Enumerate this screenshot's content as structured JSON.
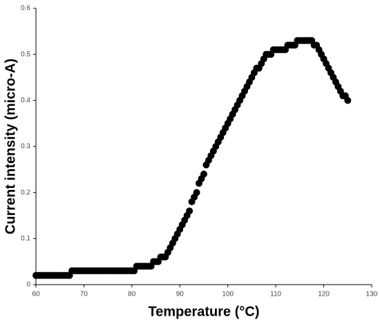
{
  "chart_data": {
    "type": "scatter",
    "x_label": "Temperature (°C)",
    "y_label": "Current intensity (micro-A)",
    "xlim": [
      60,
      130
    ],
    "xticks": [
      60,
      70,
      80,
      90,
      100,
      110,
      120,
      130
    ],
    "ylim": [
      0,
      0.6
    ],
    "yticks": [
      0,
      0.1,
      0.2,
      0.3,
      0.4,
      0.5,
      0.6
    ],
    "color": "#000000",
    "x": [
      60,
      60.5,
      61,
      61.5,
      62,
      62.5,
      63,
      63.5,
      64,
      64.5,
      65,
      65.5,
      66,
      66.5,
      67,
      67.5,
      68,
      68.5,
      69,
      69.5,
      70,
      70.5,
      71,
      71.5,
      72,
      72.5,
      73,
      73.5,
      74,
      74.5,
      75,
      75.5,
      76,
      76.5,
      77,
      77.5,
      78,
      78.5,
      79,
      79.5,
      80,
      80.5,
      81,
      81.5,
      82,
      82.5,
      83,
      83.5,
      84,
      84.5,
      85,
      85.5,
      86,
      86.5,
      87,
      87.5,
      88,
      88.5,
      89,
      89.5,
      90,
      90.5,
      91,
      91.5,
      92,
      92.5,
      93,
      93.5,
      94,
      94.5,
      95,
      95.5,
      96,
      96.5,
      97,
      97.5,
      98,
      98.5,
      99,
      99.5,
      100,
      100.5,
      101,
      101.5,
      102,
      102.5,
      103,
      103.5,
      104,
      104.5,
      105,
      105.5,
      106,
      106.5,
      107,
      107.5,
      108,
      108.5,
      109,
      109.5,
      110,
      110.5,
      111,
      111.5,
      112,
      112.5,
      113,
      113.5,
      114,
      114.5,
      115,
      115.5,
      116,
      116.5,
      117,
      117.5,
      118,
      118.5,
      119,
      119.5,
      120,
      120.5,
      121,
      121.5,
      122,
      122.5,
      123,
      123.5,
      124,
      124.5,
      125
    ],
    "values": [
      0.02,
      0.02,
      0.02,
      0.02,
      0.02,
      0.02,
      0.02,
      0.02,
      0.02,
      0.02,
      0.02,
      0.02,
      0.02,
      0.02,
      0.02,
      0.03,
      0.03,
      0.03,
      0.03,
      0.03,
      0.03,
      0.03,
      0.03,
      0.03,
      0.03,
      0.03,
      0.03,
      0.03,
      0.03,
      0.03,
      0.03,
      0.03,
      0.03,
      0.03,
      0.03,
      0.03,
      0.03,
      0.03,
      0.03,
      0.03,
      0.03,
      0.03,
      0.04,
      0.04,
      0.04,
      0.04,
      0.04,
      0.04,
      0.04,
      0.05,
      0.05,
      0.05,
      0.06,
      0.06,
      0.06,
      0.07,
      0.08,
      0.09,
      0.1,
      0.11,
      0.12,
      0.13,
      0.14,
      0.15,
      0.16,
      0.18,
      0.19,
      0.2,
      0.22,
      0.23,
      0.24,
      0.26,
      0.27,
      0.28,
      0.29,
      0.3,
      0.31,
      0.32,
      0.33,
      0.34,
      0.35,
      0.36,
      0.37,
      0.38,
      0.39,
      0.4,
      0.41,
      0.42,
      0.43,
      0.44,
      0.45,
      0.46,
      0.47,
      0.47,
      0.48,
      0.49,
      0.5,
      0.5,
      0.5,
      0.51,
      0.51,
      0.51,
      0.51,
      0.51,
      0.51,
      0.52,
      0.52,
      0.52,
      0.52,
      0.53,
      0.53,
      0.53,
      0.53,
      0.53,
      0.53,
      0.53,
      0.52,
      0.52,
      0.51,
      0.5,
      0.49,
      0.48,
      0.47,
      0.46,
      0.45,
      0.44,
      0.43,
      0.42,
      0.41,
      0.41,
      0.4
    ]
  }
}
